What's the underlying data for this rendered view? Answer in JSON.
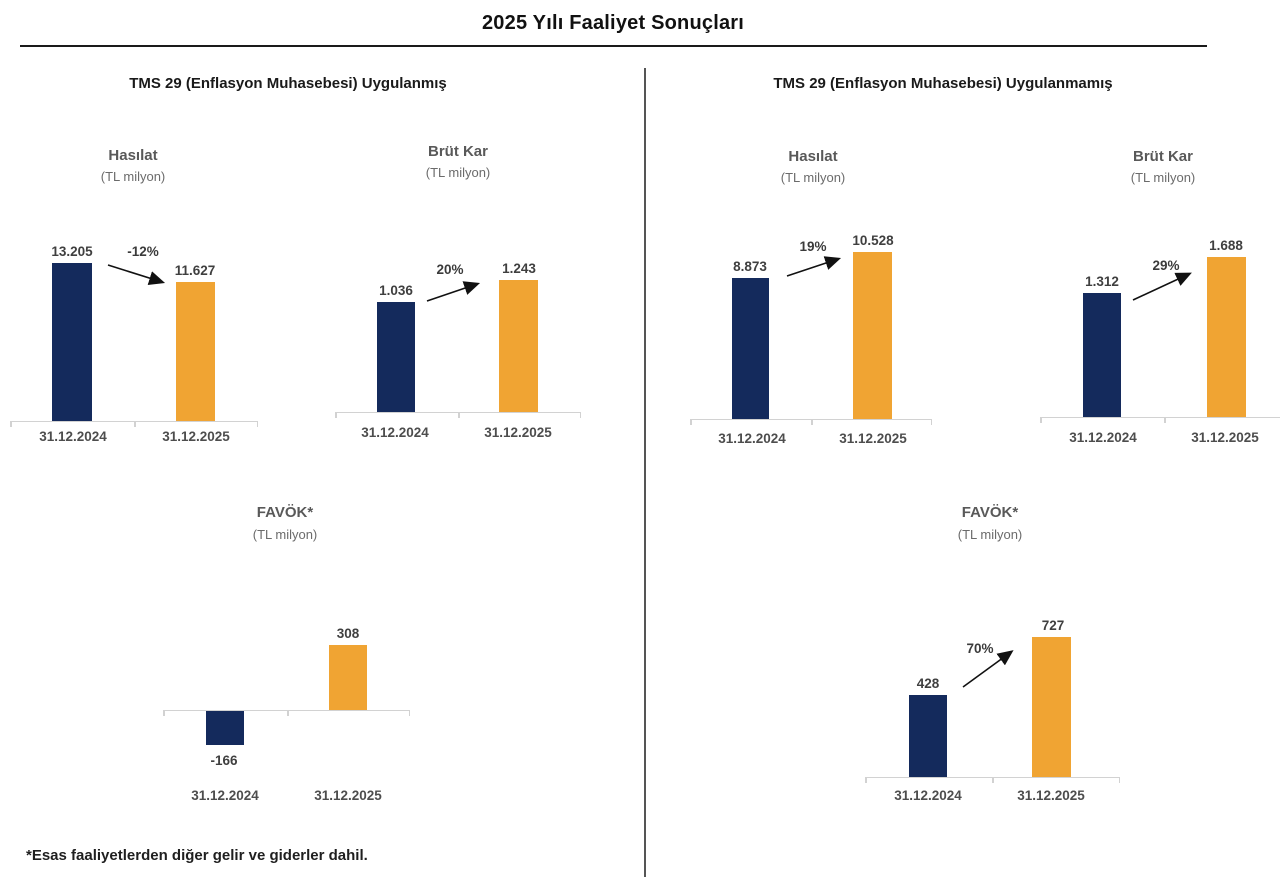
{
  "page": {
    "title": "2025 Yılı Faaliyet Sonuçları",
    "footnote": "*Esas faaliyetlerden diğer gelir ve giderler dahil."
  },
  "sections": [
    {
      "header": "TMS 29 (Enflasyon Muhasebesi) Uygulanmış"
    },
    {
      "header": "TMS 29 (Enflasyon Muhasebesi) Uygulanmamış"
    }
  ],
  "colors": {
    "bar_2024": "#142A5C",
    "bar_2025": "#F0A433",
    "axis": "#D2D2D2",
    "title_gray": "#595959"
  },
  "chart_data": [
    {
      "type": "bar",
      "section": "TMS 29 (Enflasyon Muhasebesi) Uygulanmış",
      "title": "Hasılat",
      "subtitle": "(TL milyon)",
      "categories": [
        "31.12.2024",
        "31.12.2025"
      ],
      "values": [
        13205,
        11627
      ],
      "value_labels": [
        "13.205",
        "11.627"
      ],
      "change_label": "-12%"
    },
    {
      "type": "bar",
      "section": "TMS 29 (Enflasyon Muhasebesi) Uygulanmış",
      "title": "Brüt Kar",
      "subtitle": "(TL milyon)",
      "categories": [
        "31.12.2024",
        "31.12.2025"
      ],
      "values": [
        1036,
        1243
      ],
      "value_labels": [
        "1.036",
        "1.243"
      ],
      "change_label": "20%"
    },
    {
      "type": "bar",
      "section": "TMS 29 (Enflasyon Muhasebesi) Uygulanmış",
      "title": "FAVÖK*",
      "subtitle": "(TL milyon)",
      "categories": [
        "31.12.2024",
        "31.12.2025"
      ],
      "values": [
        -166,
        308
      ],
      "value_labels": [
        "-166",
        "308"
      ],
      "change_label": null
    },
    {
      "type": "bar",
      "section": "TMS 29 (Enflasyon Muhasebesi) Uygulanmamış",
      "title": "Hasılat",
      "subtitle": "(TL milyon)",
      "categories": [
        "31.12.2024",
        "31.12.2025"
      ],
      "values": [
        8873,
        10528
      ],
      "value_labels": [
        "8.873",
        "10.528"
      ],
      "change_label": "19%"
    },
    {
      "type": "bar",
      "section": "TMS 29 (Enflasyon Muhasebesi) Uygulanmamış",
      "title": "Brüt Kar",
      "subtitle": "(TL milyon)",
      "categories": [
        "31.12.2024",
        "31.12.2025"
      ],
      "values": [
        1312,
        1688
      ],
      "value_labels": [
        "1.312",
        "1.688"
      ],
      "change_label": "29%"
    },
    {
      "type": "bar",
      "section": "TMS 29 (Enflasyon Muhasebesi) Uygulanmamış",
      "title": "FAVÖK*",
      "subtitle": "(TL milyon)",
      "categories": [
        "31.12.2024",
        "31.12.2025"
      ],
      "values": [
        428,
        727
      ],
      "value_labels": [
        "428",
        "727"
      ],
      "change_label": "70%"
    }
  ]
}
